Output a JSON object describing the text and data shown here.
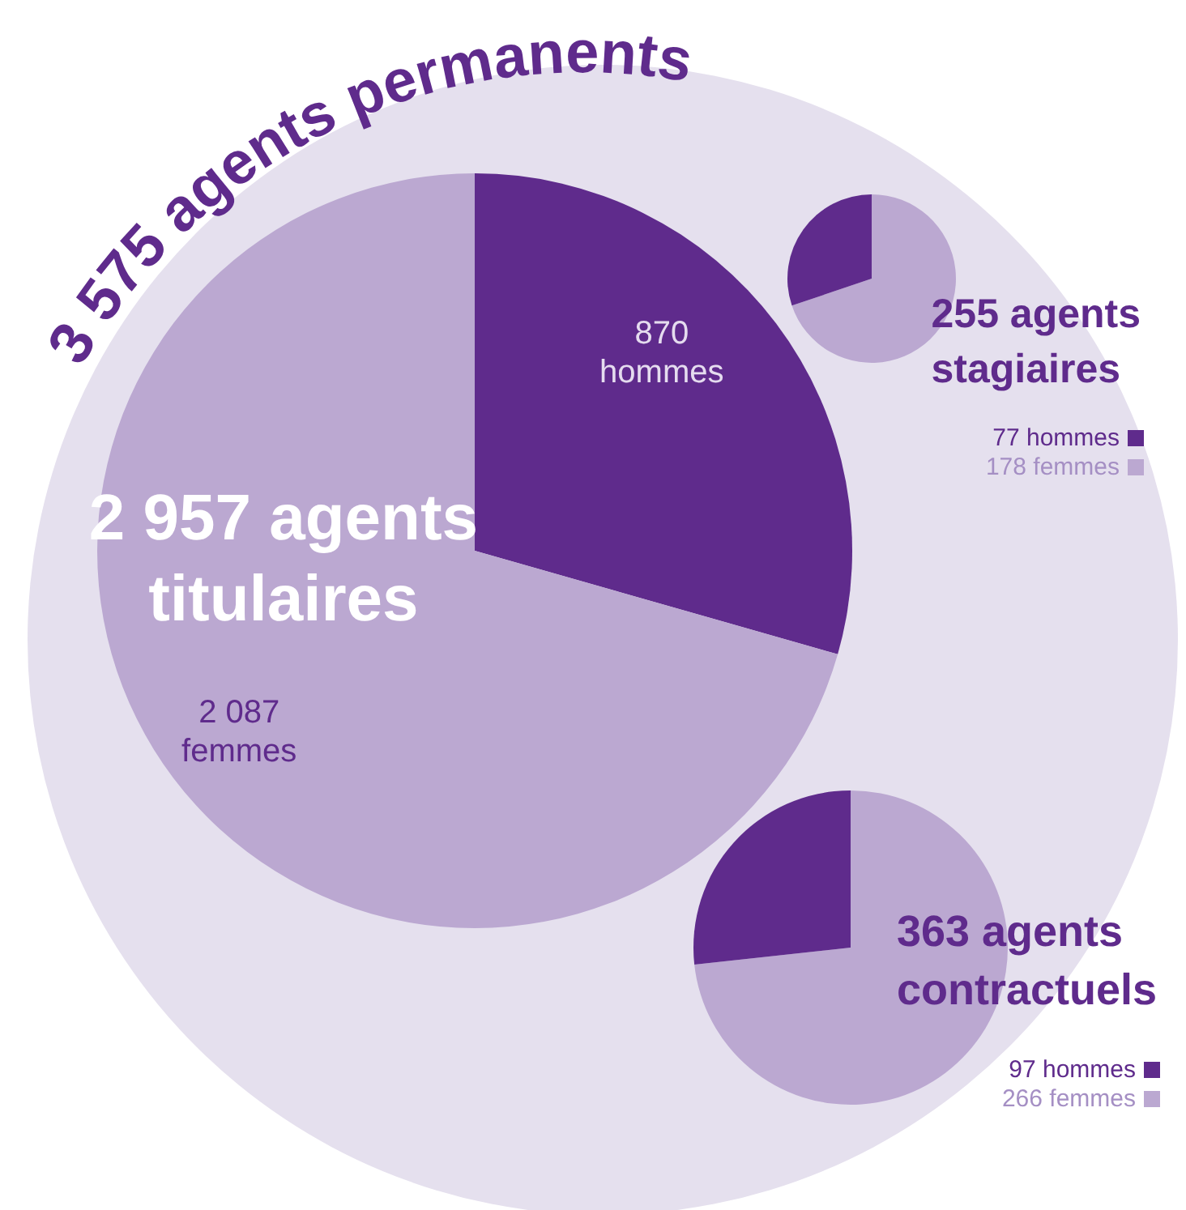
{
  "chart_data": [
    {
      "type": "other",
      "title": "3 575 agents permanents"
    },
    {
      "type": "pie",
      "title": "2 957 agents titulaires",
      "categories": [
        "hommes",
        "femmes"
      ],
      "values": [
        870,
        2087
      ],
      "colors": [
        "#5f2b8c",
        "#bba8d1"
      ],
      "value_labels": [
        "870",
        "2 087"
      ],
      "legend": false
    },
    {
      "type": "pie",
      "title": "255 agents stagiaires",
      "categories": [
        "femmes",
        "hommes"
      ],
      "values": [
        178,
        77
      ],
      "colors": [
        "#bba8d1",
        "#5f2b8c"
      ],
      "value_labels": [
        "178",
        "77"
      ],
      "legend": "bottom right"
    },
    {
      "type": "pie",
      "title": "363 agents contractuels",
      "categories": [
        "femmes",
        "hommes"
      ],
      "values": [
        266,
        97
      ],
      "colors": [
        "#bba8d1",
        "#5f2b8c"
      ],
      "value_labels": [
        "266",
        "97"
      ],
      "legend": "bottom right"
    }
  ]
}
